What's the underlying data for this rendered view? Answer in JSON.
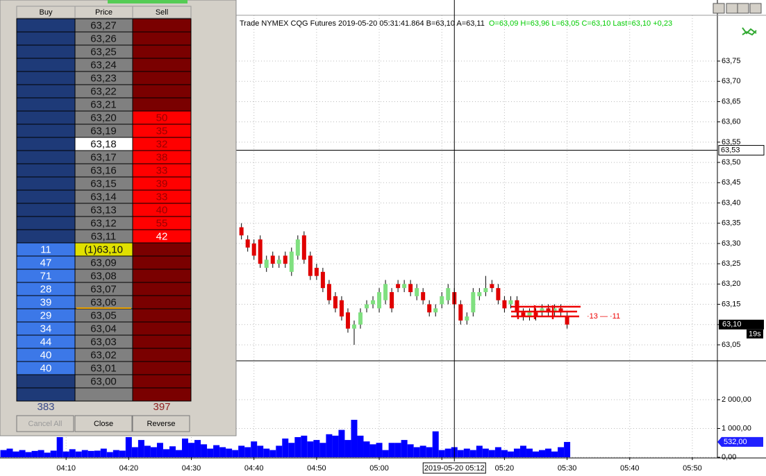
{
  "dom": {
    "headers": [
      "Buy",
      "Price",
      "Sell"
    ],
    "rows": [
      {
        "price": "63,27"
      },
      {
        "price": "63,26"
      },
      {
        "price": "63,25"
      },
      {
        "price": "63,24"
      },
      {
        "price": "63,23"
      },
      {
        "price": "63,22"
      },
      {
        "price": "63,21"
      },
      {
        "price": "63,20",
        "sell": 50
      },
      {
        "price": "63,19",
        "sell": 35
      },
      {
        "price": "63,18",
        "sell": 32
      },
      {
        "price": "63,17",
        "sell": 38
      },
      {
        "price": "63,16",
        "sell": 33
      },
      {
        "price": "63,15",
        "sell": 39
      },
      {
        "price": "63,14",
        "sell": 33
      },
      {
        "price": "63,13",
        "sell": 40
      },
      {
        "price": "63,12",
        "sell": 55
      },
      {
        "price": "63,11",
        "sell": 42
      },
      {
        "price": "(1)63,10",
        "buy": 11
      },
      {
        "price": "63,09",
        "buy": 47
      },
      {
        "price": "63,08",
        "buy": 71
      },
      {
        "price": "63,07",
        "buy": 28
      },
      {
        "price": "63,06",
        "buy": 39
      },
      {
        "price": "63,05",
        "buy": 29
      },
      {
        "price": "63,04",
        "buy": 34
      },
      {
        "price": "63,03",
        "buy": 44
      },
      {
        "price": "63,02",
        "buy": 40
      },
      {
        "price": "63,01",
        "buy": 40
      },
      {
        "price": "63,00"
      }
    ],
    "total_buy": 383,
    "total_sell": 397,
    "buttons": [
      "Cancel All",
      "Close",
      "Reverse"
    ]
  },
  "chart_data": {
    "type": "candlestick",
    "header": "Trade NYMEX CQG Futures 2019-05-20 05:31:41.864 B=63,10 A=63,11",
    "header_ohlc": "O=63,09 H=63,96 L=63,05 C=63,10 Last=63,10 +0,23",
    "annotation": "·13 — ·11",
    "xlim": [
      "04:00",
      "05:54"
    ],
    "xticks": [
      "04:10",
      "04:20",
      "04:30",
      "04:40",
      "04:50",
      "05:00",
      "05:10",
      "05:20",
      "05:30",
      "05:40",
      "05:50"
    ],
    "crosshair_x": {
      "value": "05:12",
      "label": "2019-05-20 05:12"
    },
    "crosshair_y": {
      "value": 63.53,
      "label": "63,53"
    },
    "last_price": {
      "value": 63.1,
      "label": "63,10"
    },
    "timer": "19s",
    "ylim": [
      63.014,
      63.863
    ],
    "yticks": [
      {
        "value": 63.05,
        "label": "63,05"
      },
      {
        "value": 63.1,
        "label": "63,10"
      },
      {
        "value": 63.15,
        "label": "63,15"
      },
      {
        "value": 63.2,
        "label": "63,20"
      },
      {
        "value": 63.25,
        "label": "63,25"
      },
      {
        "value": 63.3,
        "label": "63,30"
      },
      {
        "value": 63.35,
        "label": "63,35"
      },
      {
        "value": 63.4,
        "label": "63,40"
      },
      {
        "value": 63.45,
        "label": "63,45"
      },
      {
        "value": 63.5,
        "label": "63,50"
      },
      {
        "value": 63.55,
        "label": "63,55"
      },
      {
        "value": 63.6,
        "label": "63,60"
      },
      {
        "value": 63.65,
        "label": "63,65"
      },
      {
        "value": 63.7,
        "label": "63,70"
      },
      {
        "value": 63.75,
        "label": "63,75"
      }
    ],
    "up_color": "#80e080",
    "down_color": "#e00000",
    "grid": true,
    "x": [
      "04:38",
      "04:39",
      "04:40",
      "04:41",
      "04:42",
      "04:43",
      "04:44",
      "04:45",
      "04:46",
      "04:47",
      "04:48",
      "04:49",
      "04:50",
      "04:51",
      "04:52",
      "04:53",
      "04:54",
      "04:55",
      "04:56",
      "04:57",
      "04:58",
      "04:59",
      "05:00",
      "05:01",
      "05:02",
      "05:03",
      "05:04",
      "05:05",
      "05:06",
      "05:07",
      "05:08",
      "05:09",
      "05:10",
      "05:11",
      "05:12",
      "05:13",
      "05:14",
      "05:15",
      "05:16",
      "05:17",
      "05:18",
      "05:19",
      "05:20",
      "05:21",
      "05:22",
      "05:23",
      "05:24",
      "05:25",
      "05:26",
      "05:27",
      "05:28",
      "05:29",
      "05:30"
    ],
    "open": [
      63.34,
      63.31,
      63.3,
      63.31,
      63.24,
      63.27,
      63.25,
      63.27,
      63.23,
      63.27,
      63.32,
      63.27,
      63.24,
      63.23,
      63.2,
      63.17,
      63.16,
      63.13,
      63.09,
      63.1,
      63.14,
      63.15,
      63.14,
      63.16,
      63.18,
      63.2,
      63.19,
      63.2,
      63.17,
      63.18,
      63.15,
      63.13,
      63.15,
      63.16,
      63.18,
      63.15,
      63.11,
      63.13,
      63.17,
      63.18,
      63.2,
      63.19,
      63.16,
      63.15,
      63.16,
      63.13,
      63.12,
      63.13,
      63.13,
      63.14,
      63.13,
      63.14,
      63.12
    ],
    "high": [
      63.35,
      63.32,
      63.31,
      63.32,
      63.27,
      63.28,
      63.27,
      63.28,
      63.29,
      63.32,
      63.33,
      63.28,
      63.25,
      63.24,
      63.21,
      63.18,
      63.17,
      63.14,
      63.11,
      63.14,
      63.16,
      63.17,
      63.19,
      63.21,
      63.19,
      63.21,
      63.21,
      63.21,
      63.2,
      63.19,
      63.16,
      63.15,
      63.18,
      63.2,
      63.19,
      63.16,
      63.13,
      63.19,
      63.19,
      63.22,
      63.21,
      63.2,
      63.17,
      63.17,
      63.17,
      63.14,
      63.14,
      63.14,
      63.15,
      63.15,
      63.15,
      63.15,
      63.13
    ],
    "low": [
      63.31,
      63.28,
      63.26,
      63.24,
      63.23,
      63.24,
      63.24,
      63.24,
      63.22,
      63.26,
      63.25,
      63.21,
      63.21,
      63.18,
      63.15,
      63.13,
      63.11,
      63.08,
      63.05,
      63.09,
      63.13,
      63.14,
      63.13,
      63.15,
      63.13,
      63.18,
      63.18,
      63.17,
      63.16,
      63.15,
      63.12,
      63.12,
      63.14,
      63.15,
      63.14,
      63.1,
      63.1,
      63.12,
      63.16,
      63.17,
      63.18,
      63.15,
      63.13,
      63.14,
      63.12,
      63.11,
      63.11,
      63.11,
      63.12,
      63.12,
      63.12,
      63.12,
      63.09
    ],
    "close": [
      63.32,
      63.29,
      63.27,
      63.25,
      63.26,
      63.25,
      63.26,
      63.25,
      63.28,
      63.31,
      63.26,
      63.22,
      63.22,
      63.19,
      63.16,
      63.14,
      63.12,
      63.09,
      63.1,
      63.13,
      63.15,
      63.16,
      63.18,
      63.2,
      63.14,
      63.19,
      63.2,
      63.18,
      63.19,
      63.16,
      63.13,
      63.14,
      63.17,
      63.19,
      63.15,
      63.11,
      63.12,
      63.18,
      63.18,
      63.19,
      63.19,
      63.16,
      63.14,
      63.16,
      63.13,
      63.12,
      63.13,
      63.12,
      63.14,
      63.13,
      63.14,
      63.13,
      63.1
    ],
    "volume": {
      "color": "#0000ff",
      "ylim": [
        0,
        3277
      ],
      "yticks": [
        {
          "value": 0,
          "label": "0,00"
        },
        {
          "value": 1000,
          "label": "1 000,00"
        },
        {
          "value": 2000,
          "label": "2 000,00"
        }
      ],
      "last": {
        "value": 532,
        "label": "532,00"
      },
      "x": [
        "04:00",
        "04:01",
        "04:02",
        "04:03",
        "04:04",
        "04:05",
        "04:06",
        "04:07",
        "04:08",
        "04:09",
        "04:10",
        "04:11",
        "04:12",
        "04:13",
        "04:14",
        "04:15",
        "04:16",
        "04:17",
        "04:18",
        "04:19",
        "04:20",
        "04:21",
        "04:22",
        "04:23",
        "04:24",
        "04:25",
        "04:26",
        "04:27",
        "04:28",
        "04:29",
        "04:30",
        "04:31",
        "04:32",
        "04:33",
        "04:34",
        "04:35",
        "04:36",
        "04:37",
        "04:38",
        "04:39",
        "04:40",
        "04:41",
        "04:42",
        "04:43",
        "04:44",
        "04:45",
        "04:46",
        "04:47",
        "04:48",
        "04:49",
        "04:50",
        "04:51",
        "04:52",
        "04:53",
        "04:54",
        "04:55",
        "04:56",
        "04:57",
        "04:58",
        "04:59",
        "05:00",
        "05:01",
        "05:02",
        "05:03",
        "05:04",
        "05:05",
        "05:06",
        "05:07",
        "05:08",
        "05:09",
        "05:10",
        "05:11",
        "05:12",
        "05:13",
        "05:14",
        "05:15",
        "05:16",
        "05:17",
        "05:18",
        "05:19",
        "05:20",
        "05:21",
        "05:22",
        "05:23",
        "05:24",
        "05:25",
        "05:26",
        "05:27",
        "05:28",
        "05:29",
        "05:30"
      ],
      "values": [
        250,
        300,
        200,
        250,
        180,
        220,
        250,
        160,
        230,
        700,
        200,
        280,
        200,
        250,
        220,
        230,
        300,
        180,
        250,
        230,
        700,
        350,
        600,
        400,
        350,
        500,
        280,
        380,
        250,
        650,
        500,
        600,
        450,
        300,
        420,
        350,
        300,
        250,
        400,
        350,
        550,
        400,
        300,
        250,
        400,
        650,
        500,
        700,
        750,
        550,
        600,
        500,
        800,
        750,
        950,
        600,
        1300,
        750,
        550,
        450,
        500,
        250,
        500,
        500,
        600,
        450,
        350,
        400,
        350,
        900,
        250,
        300,
        350,
        250,
        300,
        250,
        400,
        300,
        250,
        350,
        250,
        200,
        300,
        400,
        300,
        200,
        250,
        300,
        200,
        350,
        532
      ]
    }
  }
}
